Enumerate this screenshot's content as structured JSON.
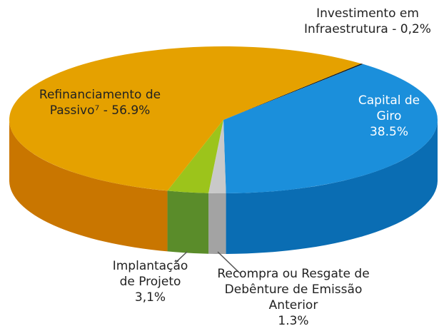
{
  "chart_data": {
    "type": "pie3d",
    "categories": [
      "Investimento em Infraestrutura -",
      "Capital de Giro",
      "Recompra ou Resgate de Debênture de Emissão Anterior",
      "Implantação de Projeto",
      "Refinanciamento de Passivo⁷ -"
    ],
    "values": [
      0.2,
      38.5,
      1.3,
      3.1,
      56.9
    ],
    "value_labels": [
      "0,2%",
      "38.5%",
      "1.3%",
      "3,1%",
      "56.9%"
    ],
    "colors": [
      "#1a1a1a",
      "#1b8fdb",
      "#c9c9c9",
      "#9cc41b",
      "#e5a100"
    ],
    "side_colors": [
      "#111111",
      "#0a6db3",
      "#a3a3a3",
      "#5a8c2a",
      "#c97600"
    ]
  }
}
